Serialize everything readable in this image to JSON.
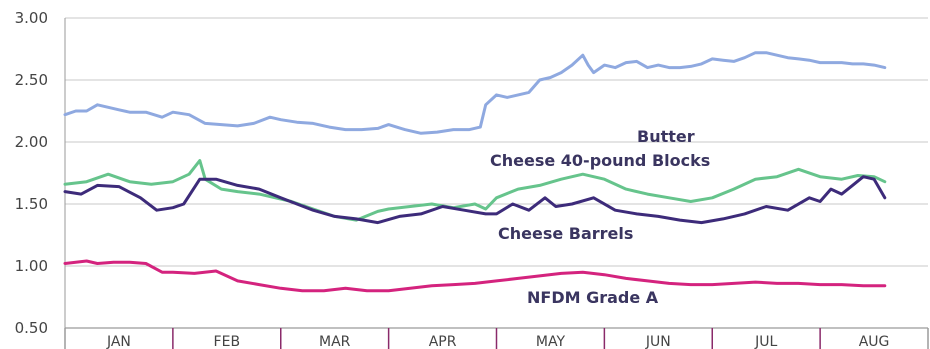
{
  "chart_data": {
    "type": "line",
    "categories": [
      "JAN",
      "FEB",
      "MAR",
      "APR",
      "MAY",
      "JUN",
      "JUL",
      "AUG"
    ],
    "ylim": [
      0.5,
      3.0
    ],
    "yticks": [
      "3.00",
      "2.50",
      "2.00",
      "1.50",
      "1.00",
      "0.50"
    ],
    "ytick_values": [
      3.0,
      2.5,
      2.0,
      1.5,
      1.0,
      0.5
    ],
    "grid": true,
    "series": [
      {
        "name": "Butter",
        "color": "#8fa9e0",
        "x": [
          0,
          0.1,
          0.2,
          0.3,
          0.4,
          0.5,
          0.6,
          0.75,
          0.9,
          1,
          1.15,
          1.3,
          1.45,
          1.6,
          1.75,
          1.9,
          2,
          2.15,
          2.3,
          2.45,
          2.6,
          2.75,
          2.9,
          3,
          3.15,
          3.3,
          3.45,
          3.6,
          3.75,
          3.85,
          3.9,
          4,
          4.1,
          4.2,
          4.3,
          4.4,
          4.5,
          4.6,
          4.7,
          4.8,
          4.85,
          4.9,
          5,
          5.1,
          5.2,
          5.3,
          5.4,
          5.5,
          5.6,
          5.7,
          5.8,
          5.9,
          6,
          6.1,
          6.2,
          6.3,
          6.4,
          6.5,
          6.6,
          6.7,
          6.8,
          6.9,
          7,
          7.1,
          7.2,
          7.3,
          7.4,
          7.5,
          7.6
        ],
        "values": [
          2.22,
          2.25,
          2.25,
          2.3,
          2.28,
          2.26,
          2.24,
          2.24,
          2.2,
          2.24,
          2.22,
          2.15,
          2.14,
          2.13,
          2.15,
          2.2,
          2.18,
          2.16,
          2.15,
          2.12,
          2.1,
          2.1,
          2.11,
          2.14,
          2.1,
          2.07,
          2.08,
          2.1,
          2.1,
          2.12,
          2.3,
          2.38,
          2.36,
          2.38,
          2.4,
          2.5,
          2.52,
          2.56,
          2.62,
          2.7,
          2.62,
          2.56,
          2.62,
          2.6,
          2.64,
          2.65,
          2.6,
          2.62,
          2.6,
          2.6,
          2.61,
          2.63,
          2.67,
          2.66,
          2.65,
          2.68,
          2.72,
          2.72,
          2.7,
          2.68,
          2.67,
          2.66,
          2.64,
          2.64,
          2.64,
          2.63,
          2.63,
          2.62,
          2.6
        ]
      },
      {
        "name": "Cheese 40-pound Blocks",
        "color": "#66c48c",
        "x": [
          0,
          0.2,
          0.4,
          0.6,
          0.8,
          1,
          1.15,
          1.25,
          1.3,
          1.45,
          1.6,
          1.8,
          1.95,
          2.1,
          2.3,
          2.5,
          2.7,
          2.9,
          3,
          3.2,
          3.4,
          3.6,
          3.8,
          3.9,
          4,
          4.2,
          4.4,
          4.6,
          4.8,
          5,
          5.2,
          5.4,
          5.6,
          5.8,
          6,
          6.2,
          6.4,
          6.6,
          6.8,
          7,
          7.2,
          7.35,
          7.5,
          7.6
        ],
        "values": [
          1.66,
          1.68,
          1.74,
          1.68,
          1.66,
          1.68,
          1.74,
          1.85,
          1.7,
          1.62,
          1.6,
          1.58,
          1.55,
          1.52,
          1.46,
          1.4,
          1.37,
          1.44,
          1.46,
          1.48,
          1.5,
          1.47,
          1.5,
          1.46,
          1.55,
          1.62,
          1.65,
          1.7,
          1.74,
          1.7,
          1.62,
          1.58,
          1.55,
          1.52,
          1.55,
          1.62,
          1.7,
          1.72,
          1.78,
          1.72,
          1.7,
          1.73,
          1.72,
          1.68
        ]
      },
      {
        "name": "Cheese Barrels",
        "color": "#3d2b7a",
        "x": [
          0,
          0.15,
          0.3,
          0.5,
          0.7,
          0.85,
          1,
          1.1,
          1.25,
          1.4,
          1.6,
          1.8,
          2,
          2.15,
          2.3,
          2.5,
          2.7,
          2.9,
          3.1,
          3.3,
          3.5,
          3.7,
          3.9,
          4,
          4.15,
          4.3,
          4.45,
          4.55,
          4.7,
          4.9,
          5.1,
          5.3,
          5.5,
          5.7,
          5.9,
          6.1,
          6.3,
          6.5,
          6.7,
          6.9,
          7,
          7.1,
          7.2,
          7.3,
          7.4,
          7.5,
          7.6
        ],
        "values": [
          1.6,
          1.58,
          1.65,
          1.64,
          1.55,
          1.45,
          1.47,
          1.5,
          1.7,
          1.7,
          1.65,
          1.62,
          1.55,
          1.5,
          1.45,
          1.4,
          1.38,
          1.35,
          1.4,
          1.42,
          1.48,
          1.45,
          1.42,
          1.42,
          1.5,
          1.45,
          1.55,
          1.48,
          1.5,
          1.55,
          1.45,
          1.42,
          1.4,
          1.37,
          1.35,
          1.38,
          1.42,
          1.48,
          1.45,
          1.55,
          1.52,
          1.62,
          1.58,
          1.65,
          1.72,
          1.7,
          1.55
        ]
      },
      {
        "name": "NFDM Grade A",
        "color": "#d4237e",
        "x": [
          0,
          0.1,
          0.2,
          0.3,
          0.45,
          0.6,
          0.75,
          0.9,
          1,
          1.2,
          1.4,
          1.6,
          1.8,
          2,
          2.2,
          2.4,
          2.6,
          2.8,
          3,
          3.2,
          3.4,
          3.6,
          3.8,
          4,
          4.2,
          4.4,
          4.6,
          4.8,
          5,
          5.2,
          5.4,
          5.6,
          5.8,
          6,
          6.2,
          6.4,
          6.6,
          6.8,
          7,
          7.2,
          7.4,
          7.6
        ],
        "values": [
          1.02,
          1.03,
          1.04,
          1.02,
          1.03,
          1.03,
          1.02,
          0.95,
          0.95,
          0.94,
          0.96,
          0.88,
          0.85,
          0.82,
          0.8,
          0.8,
          0.82,
          0.8,
          0.8,
          0.82,
          0.84,
          0.85,
          0.86,
          0.88,
          0.9,
          0.92,
          0.94,
          0.95,
          0.93,
          0.9,
          0.88,
          0.86,
          0.85,
          0.85,
          0.86,
          0.87,
          0.86,
          0.86,
          0.85,
          0.85,
          0.84,
          0.84
        ]
      }
    ],
    "annotations": [
      "Butter",
      "Cheese 40-pound Blocks",
      "Cheese Barrels",
      "NFDM Grade A"
    ]
  }
}
